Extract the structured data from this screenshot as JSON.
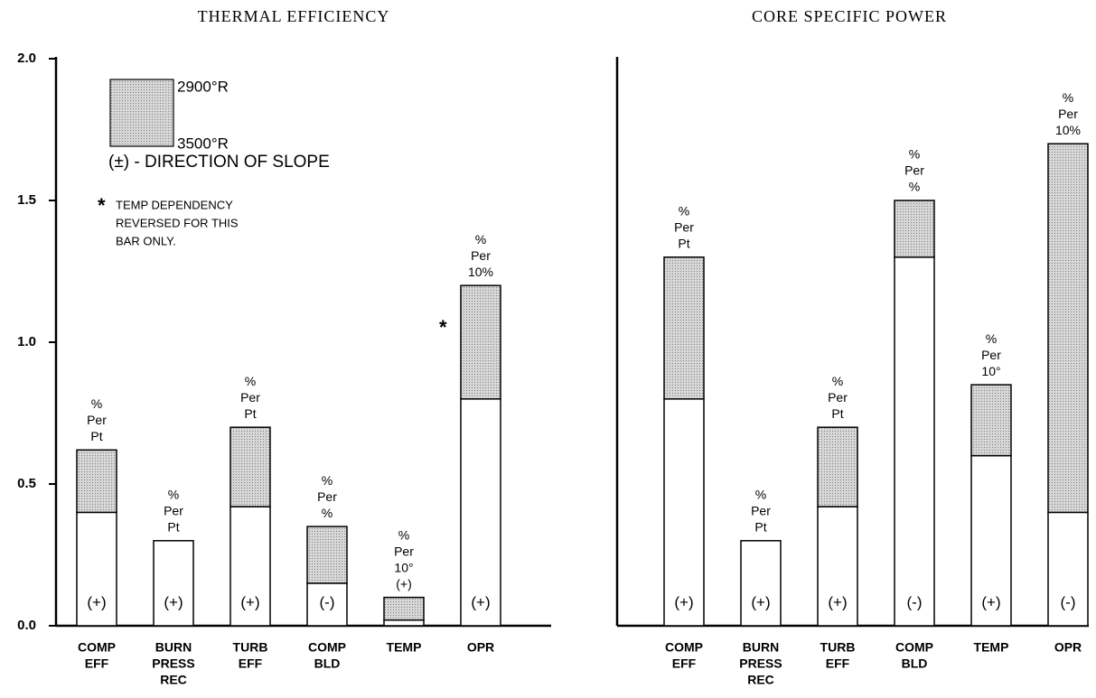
{
  "chart_data": [
    {
      "type": "bar",
      "title": "THERMAL EFFICIENCY",
      "categories": [
        [
          "COMP",
          "EFF"
        ],
        [
          "BURN",
          "PRESS",
          "REC"
        ],
        [
          "TURB",
          "EFF"
        ],
        [
          "COMP",
          "BLD"
        ],
        [
          "TEMP"
        ],
        [
          "OPR"
        ]
      ],
      "series": [
        {
          "name": "2900°R",
          "color": "#ffffff",
          "values": [
            0.62,
            0.3,
            0.7,
            0.35,
            0.1,
            0.8
          ]
        },
        {
          "name": "3500°R",
          "color": "#ffffff",
          "values": [
            0.4,
            0.3,
            0.42,
            0.15,
            0.02,
            1.2
          ]
        }
      ],
      "shade_color": "#bdbdbd",
      "bar_labels": [
        [
          "%",
          "Per",
          "Pt"
        ],
        [
          "%",
          "Per",
          "Pt"
        ],
        [
          "%",
          "Per",
          "Pt"
        ],
        [
          "%",
          "Per",
          "%"
        ],
        [
          "%",
          "Per",
          "10°",
          "(+)"
        ],
        [
          "%",
          "Per",
          "10%"
        ]
      ],
      "signs": [
        "(+)",
        "(+)",
        "(+)",
        "(-)",
        null,
        "(+)"
      ],
      "legend_note": "(±)  - DIRECTION OF SLOPE",
      "annotation": {
        "marker": "*",
        "lines": [
          "TEMP DEPENDENCY",
          "REVERSED FOR THIS",
          "BAR ONLY."
        ]
      },
      "ylim": [
        0,
        2.0
      ],
      "yticks": [
        {
          "value": 0,
          "label": "0.0"
        },
        0.5,
        {
          "value": 1.0,
          "label": "1.0"
        },
        1.5,
        {
          "value": 2.0,
          "label": "2.0"
        }
      ]
    },
    {
      "type": "bar",
      "title": "CORE SPECIFIC POWER",
      "categories": [
        [
          "COMP",
          "EFF"
        ],
        [
          "BURN",
          "PRESS",
          "REC"
        ],
        [
          "TURB",
          "EFF"
        ],
        [
          "COMP",
          "BLD"
        ],
        [
          "TEMP"
        ],
        [
          "OPR"
        ]
      ],
      "series": [
        {
          "name": "2900°R",
          "color": "#ffffff",
          "values": [
            1.3,
            0.3,
            0.7,
            1.5,
            0.85,
            1.7
          ]
        },
        {
          "name": "3500°R",
          "color": "#ffffff",
          "values": [
            0.8,
            0.3,
            0.42,
            1.3,
            0.6,
            0.4
          ]
        }
      ],
      "shade_color": "#bdbdbd",
      "bar_labels": [
        [
          "%",
          "Per",
          "Pt"
        ],
        [
          "%",
          "Per",
          "Pt"
        ],
        [
          "%",
          "Per",
          "Pt"
        ],
        [
          "%",
          "Per",
          "%"
        ],
        [
          "%",
          "Per",
          "10°"
        ],
        [
          "%",
          "Per",
          "10%"
        ]
      ],
      "signs": [
        "(+)",
        "(+)",
        "(+)",
        "(-)",
        "(+)",
        "(-)"
      ],
      "ylim": [
        0,
        2.0
      ]
    }
  ]
}
